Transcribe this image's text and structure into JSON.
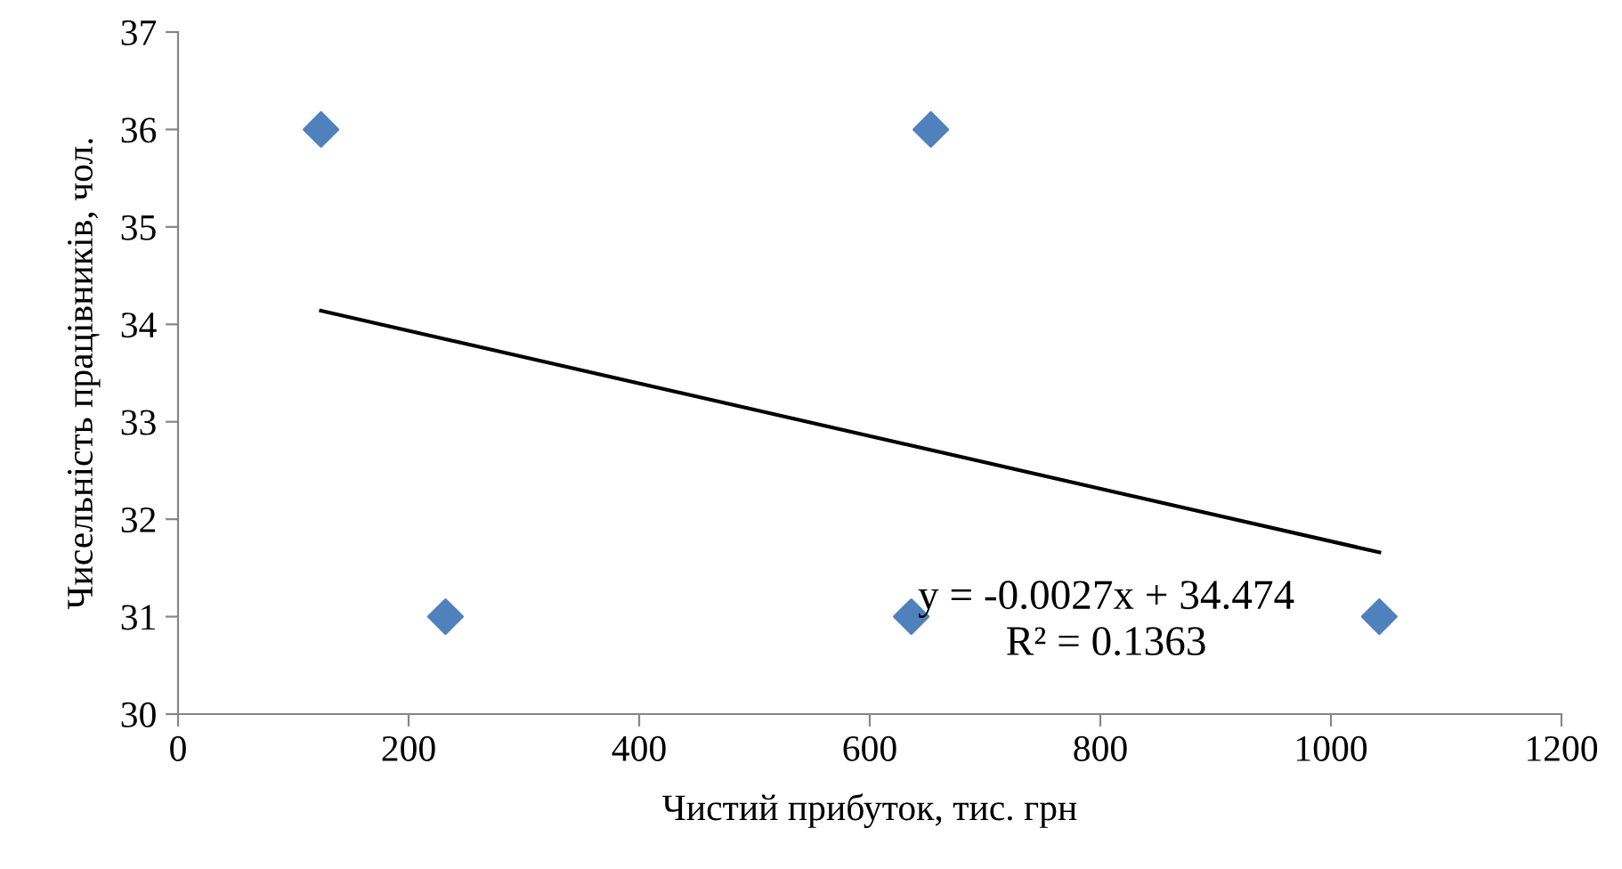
{
  "chart_data": {
    "type": "scatter",
    "xlabel": "Чистий прибуток, тис. грн",
    "ylabel": "Чисельність працівників, чол.",
    "xlim": [
      0,
      1200
    ],
    "xticks": [
      0,
      200,
      400,
      600,
      800,
      1000,
      1200
    ],
    "ylim": [
      30,
      37
    ],
    "yticks": [
      30,
      31,
      32,
      33,
      34,
      35,
      36,
      37
    ],
    "grid": false,
    "legend": false,
    "series": [
      {
        "color": "#4f81bd",
        "marker": "diamond",
        "x": [
          124,
          232,
          653,
          636,
          1042
        ],
        "values": [
          36,
          31,
          36,
          31,
          31
        ]
      },
      {
        "type": "line",
        "color": "#000000",
        "marker": "none",
        "line_style": "solid",
        "x": [
          124,
          1042
        ],
        "values": [
          34.14,
          31.66
        ]
      }
    ],
    "annotations": [
      "y = -0.0027x + 34.474",
      "R² = 0.1363"
    ]
  }
}
